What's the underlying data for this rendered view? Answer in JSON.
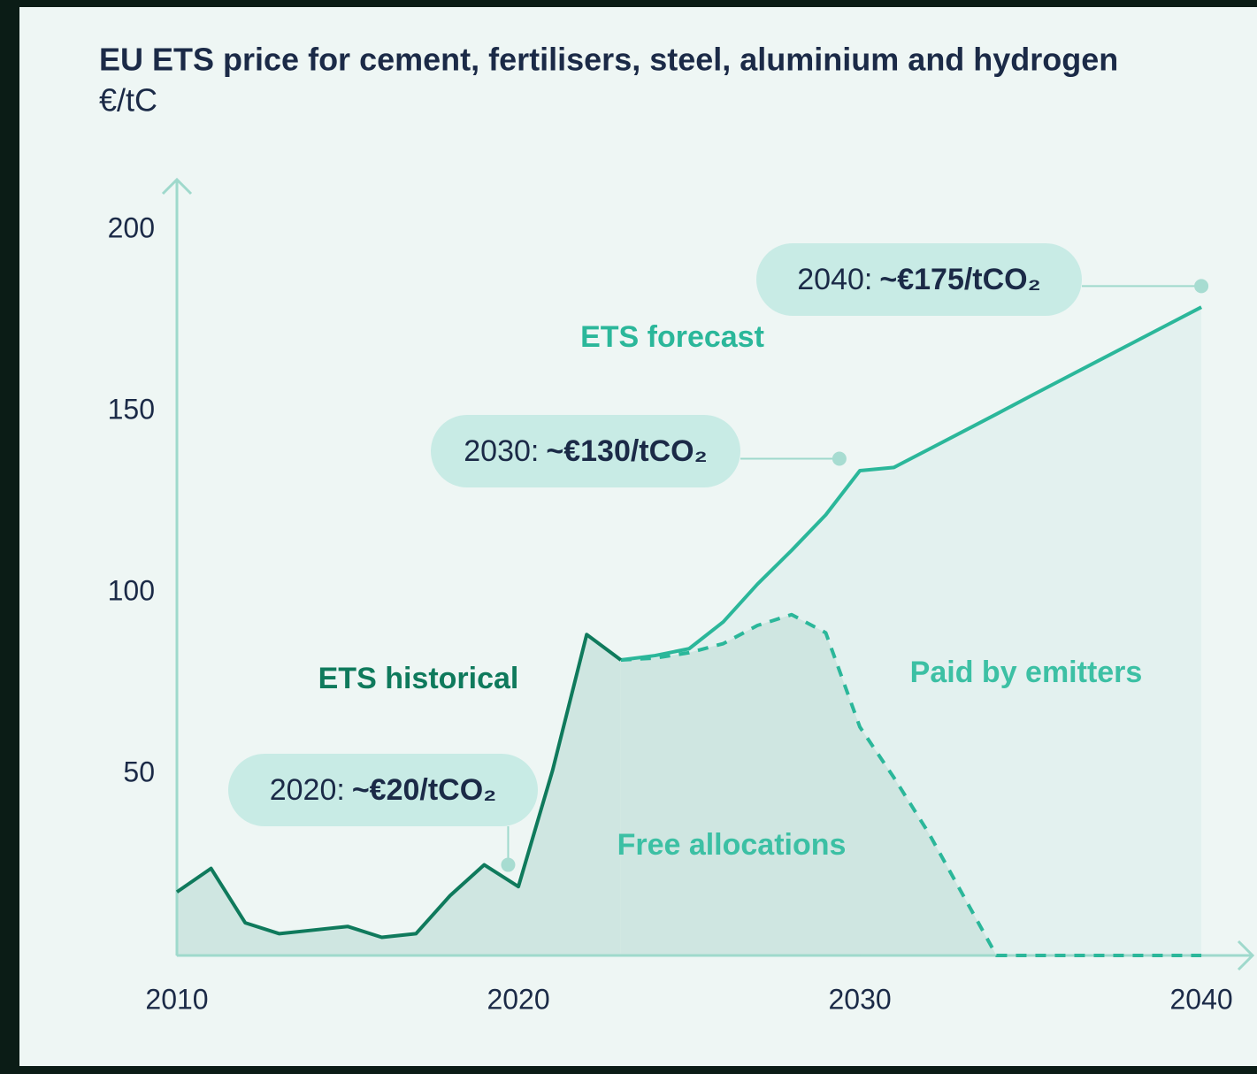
{
  "chart_data": {
    "type": "line",
    "title": "EU ETS price for cement, fertilisers, steel, aluminium and hydrogen",
    "subtitle": "€/tC",
    "x": [
      2010,
      2011,
      2012,
      2013,
      2014,
      2015,
      2016,
      2017,
      2018,
      2019,
      2020,
      2021,
      2022,
      2023,
      2024,
      2025,
      2026,
      2027,
      2028,
      2029,
      2030,
      2031,
      2032,
      2033,
      2034,
      2035,
      2036,
      2037,
      2038,
      2039,
      2040
    ],
    "xlim": [
      2010,
      2041.5
    ],
    "xticks": [
      2010,
      2020,
      2030,
      2040
    ],
    "ylim": [
      0,
      213
    ],
    "yticks": [
      50,
      100,
      150,
      200
    ],
    "series": [
      {
        "name": "ETS historical",
        "color": "#0f7a5c",
        "values": [
          17.5,
          24,
          9,
          6,
          7,
          8,
          5,
          6,
          16.5,
          25,
          19,
          51,
          88.5,
          81.5,
          null,
          null,
          null,
          null,
          null,
          null,
          null,
          null,
          null,
          null,
          null,
          null,
          null,
          null,
          null,
          null,
          null
        ]
      },
      {
        "name": "ETS forecast",
        "color": "#2bb79a",
        "values": [
          null,
          null,
          null,
          null,
          null,
          null,
          null,
          null,
          null,
          null,
          null,
          null,
          null,
          81.5,
          82.7,
          84.6,
          92,
          102.4,
          111.7,
          121.5,
          133.7,
          134.6,
          139.5,
          144.4,
          149.3,
          154.3,
          159.2,
          164.1,
          169,
          173.9,
          178.8
        ]
      },
      {
        "name": "Free allocations",
        "color": "#2bb79a",
        "dashed": true,
        "values": [
          null,
          null,
          null,
          null,
          null,
          null,
          null,
          null,
          null,
          null,
          null,
          null,
          null,
          81.5,
          82,
          83.5,
          86,
          91,
          94,
          89,
          63,
          49,
          34,
          17,
          0,
          0,
          0,
          0,
          0,
          0,
          0
        ]
      }
    ],
    "region_label": "Paid by emitters",
    "annotations": [
      {
        "year": "2020:",
        "price": "~€20/tCO₂",
        "x": 2019.7,
        "y": 25
      },
      {
        "year": "2030:",
        "price": "~€130/tCO₂",
        "x": 2029.4,
        "y": 137
      },
      {
        "year": "2040:",
        "price": "~€175/tCO₂",
        "x": 2040,
        "y": 184.6
      }
    ]
  }
}
